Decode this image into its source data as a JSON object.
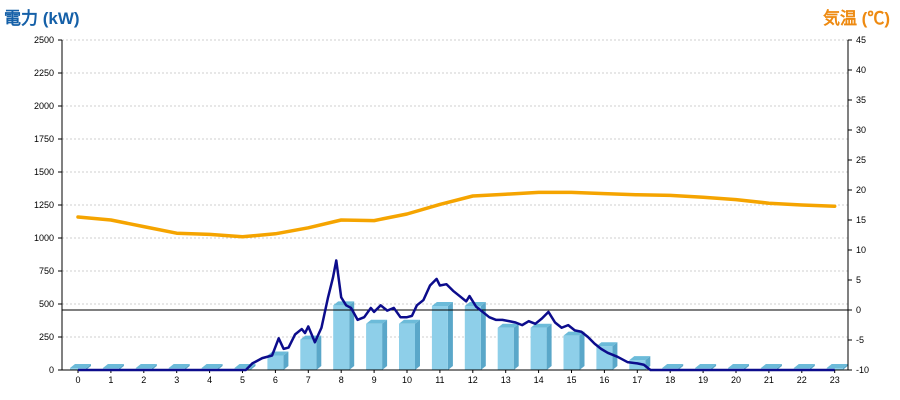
{
  "chart_data": {
    "type": "bar",
    "y_left_label": "電力 (kW)",
    "y_right_label": "気温 (℃)",
    "colors": {
      "left_label": "#1560a8",
      "right_label": "#ee8a11",
      "bar_front": "#8ecfe9",
      "bar_side": "#5aa7c9",
      "bar_top": "#6cbbd9",
      "power_line": "#0c0c8c",
      "temp_line": "#f5a400",
      "grid": "#cfcfcf",
      "axis": "#000000",
      "tick_text": "#000000"
    },
    "y_left": {
      "min": 0,
      "max": 2500,
      "ticks": [
        0,
        250,
        500,
        750,
        1000,
        1250,
        1500,
        1750,
        2000,
        2250,
        2500
      ]
    },
    "y_right": {
      "min": -10,
      "max": 45,
      "ticks": [
        -10,
        -5,
        0,
        5,
        10,
        15,
        20,
        25,
        30,
        35,
        40,
        45
      ]
    },
    "grid": true,
    "categories": [
      "0",
      "1",
      "2",
      "3",
      "4",
      "5",
      "6",
      "7",
      "8",
      "9",
      "10",
      "11",
      "12",
      "13",
      "14",
      "15",
      "16",
      "17",
      "18",
      "19",
      "20",
      "21",
      "22",
      "23"
    ],
    "bars": [
      15,
      15,
      15,
      15,
      15,
      15,
      110,
      230,
      490,
      350,
      350,
      485,
      485,
      320,
      320,
      260,
      180,
      75,
      15,
      15,
      15,
      15,
      15,
      15
    ],
    "power_line": [
      [
        0,
        0
      ],
      [
        1,
        0
      ],
      [
        2,
        0
      ],
      [
        3,
        0
      ],
      [
        4,
        0
      ],
      [
        5,
        0
      ],
      [
        5.1,
        0
      ],
      [
        5.3,
        50
      ],
      [
        5.6,
        90
      ],
      [
        5.9,
        110
      ],
      [
        6.1,
        240
      ],
      [
        6.25,
        160
      ],
      [
        6.4,
        170
      ],
      [
        6.6,
        270
      ],
      [
        6.8,
        310
      ],
      [
        6.9,
        280
      ],
      [
        7.0,
        330
      ],
      [
        7.2,
        210
      ],
      [
        7.4,
        320
      ],
      [
        7.6,
        550
      ],
      [
        7.75,
        700
      ],
      [
        7.85,
        830
      ],
      [
        8.0,
        550
      ],
      [
        8.15,
        490
      ],
      [
        8.3,
        470
      ],
      [
        8.5,
        380
      ],
      [
        8.7,
        400
      ],
      [
        8.9,
        470
      ],
      [
        9.0,
        440
      ],
      [
        9.2,
        490
      ],
      [
        9.4,
        450
      ],
      [
        9.6,
        470
      ],
      [
        9.8,
        400
      ],
      [
        10.0,
        400
      ],
      [
        10.15,
        410
      ],
      [
        10.3,
        490
      ],
      [
        10.5,
        530
      ],
      [
        10.7,
        640
      ],
      [
        10.9,
        690
      ],
      [
        11.0,
        640
      ],
      [
        11.2,
        650
      ],
      [
        11.4,
        600
      ],
      [
        11.6,
        560
      ],
      [
        11.8,
        520
      ],
      [
        11.9,
        560
      ],
      [
        12.1,
        480
      ],
      [
        12.3,
        440
      ],
      [
        12.5,
        400
      ],
      [
        12.7,
        380
      ],
      [
        12.9,
        380
      ],
      [
        13.1,
        370
      ],
      [
        13.3,
        360
      ],
      [
        13.5,
        340
      ],
      [
        13.7,
        370
      ],
      [
        13.9,
        350
      ],
      [
        14.1,
        390
      ],
      [
        14.3,
        440
      ],
      [
        14.5,
        360
      ],
      [
        14.7,
        320
      ],
      [
        14.9,
        340
      ],
      [
        15.1,
        300
      ],
      [
        15.3,
        290
      ],
      [
        15.5,
        250
      ],
      [
        15.7,
        200
      ],
      [
        15.9,
        160
      ],
      [
        16.1,
        130
      ],
      [
        16.4,
        100
      ],
      [
        16.7,
        60
      ],
      [
        17.0,
        50
      ],
      [
        17.2,
        40
      ],
      [
        17.4,
        0
      ],
      [
        18,
        0
      ],
      [
        19,
        0
      ],
      [
        20,
        0
      ],
      [
        21,
        0
      ],
      [
        22,
        0
      ],
      [
        23,
        0
      ]
    ],
    "temperature": [
      [
        0,
        15.5
      ],
      [
        1,
        15.0
      ],
      [
        2,
        13.9
      ],
      [
        3,
        12.8
      ],
      [
        4,
        12.6
      ],
      [
        5,
        12.2
      ],
      [
        6,
        12.7
      ],
      [
        7,
        13.7
      ],
      [
        8,
        15.0
      ],
      [
        9,
        14.9
      ],
      [
        10,
        16.0
      ],
      [
        11,
        17.6
      ],
      [
        12,
        19.0
      ],
      [
        13,
        19.3
      ],
      [
        14,
        19.6
      ],
      [
        15,
        19.6
      ],
      [
        16,
        19.4
      ],
      [
        17,
        19.2
      ],
      [
        18,
        19.1
      ],
      [
        19,
        18.8
      ],
      [
        20,
        18.4
      ],
      [
        21,
        17.8
      ],
      [
        22,
        17.5
      ],
      [
        23,
        17.3
      ]
    ]
  }
}
